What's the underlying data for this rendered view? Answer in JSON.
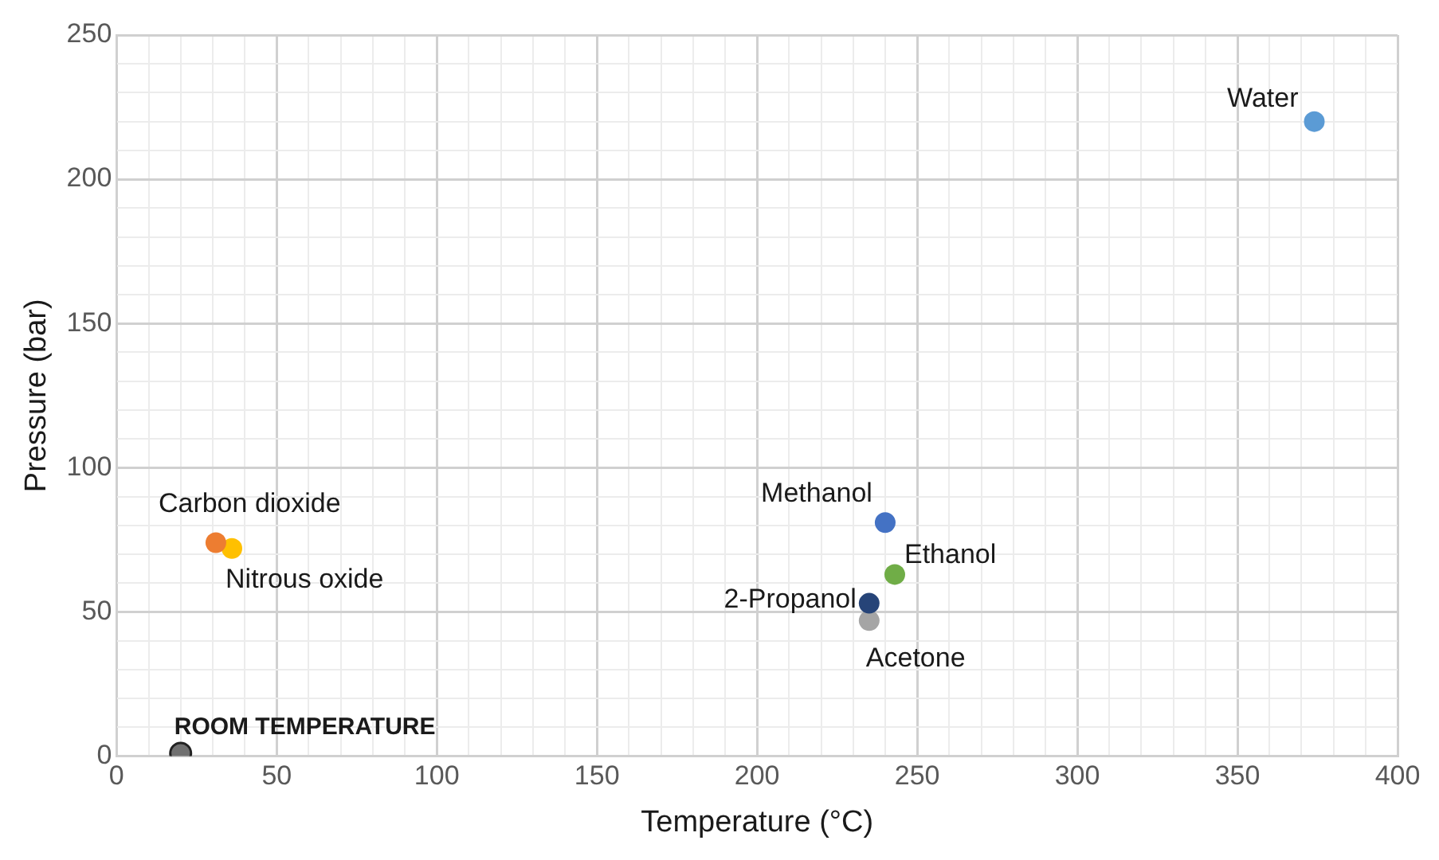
{
  "chart_data": {
    "type": "scatter",
    "xlabel": "Temperature (°C)",
    "ylabel": "Pressure (bar)",
    "xlim": [
      0,
      400
    ],
    "ylim": [
      0,
      250
    ],
    "xticks": [
      0,
      {
        "value": 10,
        "label": null
      },
      {
        "value": 20,
        "label": null
      },
      {
        "value": 30,
        "label": null
      },
      {
        "value": 40,
        "label": null
      },
      50,
      {
        "value": 60,
        "label": null
      },
      {
        "value": 70,
        "label": null
      },
      {
        "value": 80,
        "label": null
      },
      {
        "value": 90,
        "label": null
      },
      100,
      {
        "value": 110,
        "label": null
      },
      {
        "value": 120,
        "label": null
      },
      {
        "value": 130,
        "label": null
      },
      {
        "value": 140,
        "label": null
      },
      150,
      {
        "value": 160,
        "label": null
      },
      {
        "value": 170,
        "label": null
      },
      {
        "value": 180,
        "label": null
      },
      {
        "value": 190,
        "label": null
      },
      200,
      {
        "value": 210,
        "label": null
      },
      {
        "value": 220,
        "label": null
      },
      {
        "value": 230,
        "label": null
      },
      {
        "value": 240,
        "label": null
      },
      250,
      {
        "value": 260,
        "label": null
      },
      {
        "value": 270,
        "label": null
      },
      {
        "value": 280,
        "label": null
      },
      {
        "value": 290,
        "label": null
      },
      300,
      {
        "value": 310,
        "label": null
      },
      {
        "value": 320,
        "label": null
      },
      {
        "value": 330,
        "label": null
      },
      {
        "value": 340,
        "label": null
      },
      350,
      {
        "value": 360,
        "label": null
      },
      {
        "value": 370,
        "label": null
      },
      {
        "value": 380,
        "label": null
      },
      {
        "value": 390,
        "label": null
      },
      400
    ],
    "yticks": [
      0,
      {
        "value": 10,
        "label": null
      },
      {
        "value": 20,
        "label": null
      },
      {
        "value": 30,
        "label": null
      },
      {
        "value": 40,
        "label": null
      },
      50,
      {
        "value": 60,
        "label": null
      },
      {
        "value": 70,
        "label": null
      },
      {
        "value": 80,
        "label": null
      },
      {
        "value": 90,
        "label": null
      },
      100,
      {
        "value": 110,
        "label": null
      },
      {
        "value": 120,
        "label": null
      },
      {
        "value": 130,
        "label": null
      },
      {
        "value": 140,
        "label": null
      },
      150,
      {
        "value": 160,
        "label": null
      },
      {
        "value": 170,
        "label": null
      },
      {
        "value": 180,
        "label": null
      },
      {
        "value": 190,
        "label": null
      },
      200,
      {
        "value": 210,
        "label": null
      },
      {
        "value": 220,
        "label": null
      },
      {
        "value": 230,
        "label": null
      },
      {
        "value": 240,
        "label": null
      },
      250
    ],
    "grid": true,
    "legend": false,
    "marker": "circle",
    "series": [
      {
        "name": "Water",
        "color": "#5b9bd5",
        "x": [
          374
        ],
        "values": [
          220
        ]
      },
      {
        "name": "Carbon dioxide",
        "color": "#ed7d31",
        "x": [
          31
        ],
        "values": [
          74
        ]
      },
      {
        "name": "Nitrous oxide",
        "color": "#ffc000",
        "x": [
          36
        ],
        "values": [
          72
        ]
      },
      {
        "name": "Methanol",
        "color": "#4472c4",
        "x": [
          240
        ],
        "values": [
          81
        ]
      },
      {
        "name": "Ethanol",
        "color": "#70ad47",
        "x": [
          243
        ],
        "values": [
          63
        ]
      },
      {
        "name": "2-Propanol",
        "color": "#264478",
        "x": [
          235
        ],
        "values": [
          53
        ]
      },
      {
        "name": "Acetone",
        "color": "#a5a5a5",
        "x": [
          235
        ],
        "values": [
          47
        ]
      },
      {
        "name": "ROOM TEMPERATURE",
        "color": "#707070",
        "x": [
          20
        ],
        "values": [
          1
        ]
      }
    ]
  }
}
